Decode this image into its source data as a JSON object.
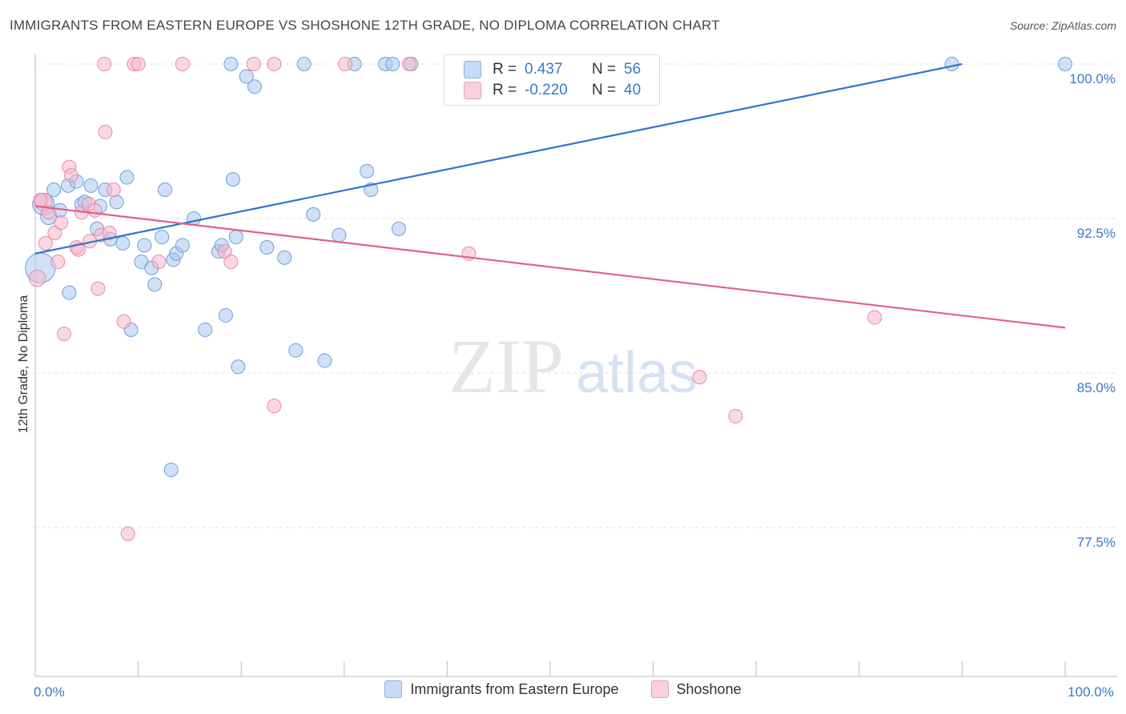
{
  "title": "IMMIGRANTS FROM EASTERN EUROPE VS SHOSHONE 12TH GRADE, NO DIPLOMA CORRELATION CHART",
  "source": "Source: ZipAtlas.com",
  "watermark": {
    "zip": "ZIP",
    "atlas": "atlas"
  },
  "stats": {
    "rows": [
      {
        "r_label": "R =",
        "r_value": "0.437",
        "n_label": "N =",
        "n_value": "56",
        "color": "#a9c8f0"
      },
      {
        "r_label": "R =",
        "r_value": "-0.220",
        "n_label": "N =",
        "n_value": "40",
        "color": "#f5b8cb"
      }
    ]
  },
  "chart_data": {
    "type": "scatter",
    "title": "IMMIGRANTS FROM EASTERN EUROPE VS SHOSHONE 12TH GRADE, NO DIPLOMA CORRELATION CHART",
    "xlabel": "",
    "ylabel": "12th Grade, No Diploma",
    "xlim": [
      0,
      100
    ],
    "ylim": [
      72.0,
      100.8
    ],
    "x_tick_labels": [
      {
        "value": 0,
        "label": "0.0%"
      },
      {
        "value": 100,
        "label": "100.0%"
      }
    ],
    "y_ticks": [
      {
        "value": 100,
        "label": "100.0%"
      },
      {
        "value": 92.5,
        "label": "92.5%"
      },
      {
        "value": 85,
        "label": "85.0%"
      },
      {
        "value": 77.5,
        "label": "77.5%"
      }
    ],
    "grid": true,
    "legend_position": "bottom",
    "series": [
      {
        "name": "Immigrants from Eastern Europe",
        "color": "#a9c8f0",
        "stroke": "#6f9ed8",
        "line_color": "#2f74d0",
        "trend": {
          "x": [
            0,
            90
          ],
          "y": [
            90.8,
            100.0
          ]
        },
        "points": [
          [
            0.5,
            90.1,
            2.2
          ],
          [
            0.8,
            93.2,
            1.6
          ],
          [
            1.3,
            92.6,
            1.2
          ],
          [
            1.8,
            93.9,
            1
          ],
          [
            2.4,
            92.9,
            1
          ],
          [
            3.2,
            94.1,
            1
          ],
          [
            3.3,
            88.9,
            1
          ],
          [
            4.0,
            94.3,
            1
          ],
          [
            4.5,
            93.2,
            1
          ],
          [
            4.8,
            93.3,
            1
          ],
          [
            5.4,
            94.1,
            1
          ],
          [
            6.3,
            93.1,
            1
          ],
          [
            6.0,
            92.0,
            1
          ],
          [
            6.8,
            93.9,
            1
          ],
          [
            7.3,
            91.5,
            1
          ],
          [
            7.9,
            93.3,
            1
          ],
          [
            8.5,
            91.3,
            1
          ],
          [
            8.9,
            94.5,
            1
          ],
          [
            9.3,
            87.1,
            1
          ],
          [
            10.3,
            90.4,
            1
          ],
          [
            10.6,
            91.2,
            1
          ],
          [
            11.3,
            90.1,
            1
          ],
          [
            11.6,
            89.3,
            1
          ],
          [
            12.3,
            91.6,
            1
          ],
          [
            12.6,
            93.9,
            1
          ],
          [
            13.2,
            80.3,
            1
          ],
          [
            13.4,
            90.5,
            1
          ],
          [
            13.7,
            90.8,
            1
          ],
          [
            14.3,
            91.2,
            1
          ],
          [
            15.4,
            92.5,
            1
          ],
          [
            16.5,
            87.1,
            1
          ],
          [
            17.8,
            90.9,
            1
          ],
          [
            18.1,
            91.2,
            1
          ],
          [
            18.5,
            87.8,
            1
          ],
          [
            19.0,
            100.0,
            1
          ],
          [
            19.2,
            94.4,
            1
          ],
          [
            19.5,
            91.6,
            1
          ],
          [
            19.7,
            85.3,
            1
          ],
          [
            20.5,
            99.4,
            1
          ],
          [
            21.3,
            98.9,
            1
          ],
          [
            22.5,
            91.1,
            1
          ],
          [
            24.2,
            90.6,
            1
          ],
          [
            25.3,
            86.1,
            1
          ],
          [
            26.1,
            100.0,
            1
          ],
          [
            27.0,
            92.7,
            1
          ],
          [
            28.1,
            85.6,
            1
          ],
          [
            29.5,
            91.7,
            1
          ],
          [
            31.0,
            100.0,
            1
          ],
          [
            32.2,
            94.8,
            1
          ],
          [
            32.6,
            93.9,
            1
          ],
          [
            34.0,
            100.0,
            1
          ],
          [
            34.7,
            100.0,
            1
          ],
          [
            35.3,
            92.0,
            1
          ],
          [
            36.5,
            100.0,
            1
          ],
          [
            89.0,
            100.0,
            1
          ],
          [
            100.0,
            100.0,
            1
          ]
        ]
      },
      {
        "name": "Shoshone",
        "color": "#f5b8cb",
        "stroke": "#e88aa8",
        "line_color": "#e0608a",
        "trend": {
          "x": [
            0,
            100
          ],
          "y": [
            93.1,
            87.2
          ]
        },
        "points": [
          [
            0.2,
            89.6,
            1.2
          ],
          [
            0.8,
            93.3,
            1.3
          ],
          [
            1.0,
            91.3,
            1
          ],
          [
            1.3,
            92.8,
            1
          ],
          [
            1.9,
            91.8,
            1
          ],
          [
            2.2,
            90.4,
            1
          ],
          [
            2.5,
            92.3,
            1
          ],
          [
            2.8,
            86.9,
            1
          ],
          [
            3.3,
            95.0,
            1
          ],
          [
            3.5,
            94.6,
            1
          ],
          [
            4.0,
            91.1,
            1
          ],
          [
            4.2,
            91.0,
            1
          ],
          [
            4.5,
            92.8,
            1
          ],
          [
            5.2,
            93.2,
            1
          ],
          [
            5.3,
            91.4,
            1
          ],
          [
            5.8,
            92.9,
            1
          ],
          [
            6.1,
            89.1,
            1
          ],
          [
            6.4,
            91.7,
            1
          ],
          [
            6.7,
            100.0,
            1
          ],
          [
            6.8,
            96.7,
            1
          ],
          [
            7.2,
            91.8,
            1
          ],
          [
            7.6,
            93.9,
            1
          ],
          [
            8.6,
            87.5,
            1
          ],
          [
            9.0,
            77.2,
            1
          ],
          [
            9.6,
            100.0,
            1
          ],
          [
            10.0,
            100.0,
            1
          ],
          [
            12.0,
            90.4,
            1
          ],
          [
            14.3,
            100.0,
            1
          ],
          [
            18.4,
            90.9,
            1
          ],
          [
            19.0,
            90.4,
            1
          ],
          [
            21.2,
            100.0,
            1
          ],
          [
            23.2,
            100.0,
            1
          ],
          [
            23.2,
            83.4,
            1
          ],
          [
            30.1,
            100.0,
            1
          ],
          [
            36.3,
            100.0,
            1
          ],
          [
            42.1,
            90.8,
            1
          ],
          [
            64.5,
            84.8,
            1
          ],
          [
            68.0,
            82.9,
            1
          ],
          [
            81.5,
            87.7,
            1
          ],
          [
            0.5,
            93.4,
            1
          ]
        ]
      }
    ]
  }
}
